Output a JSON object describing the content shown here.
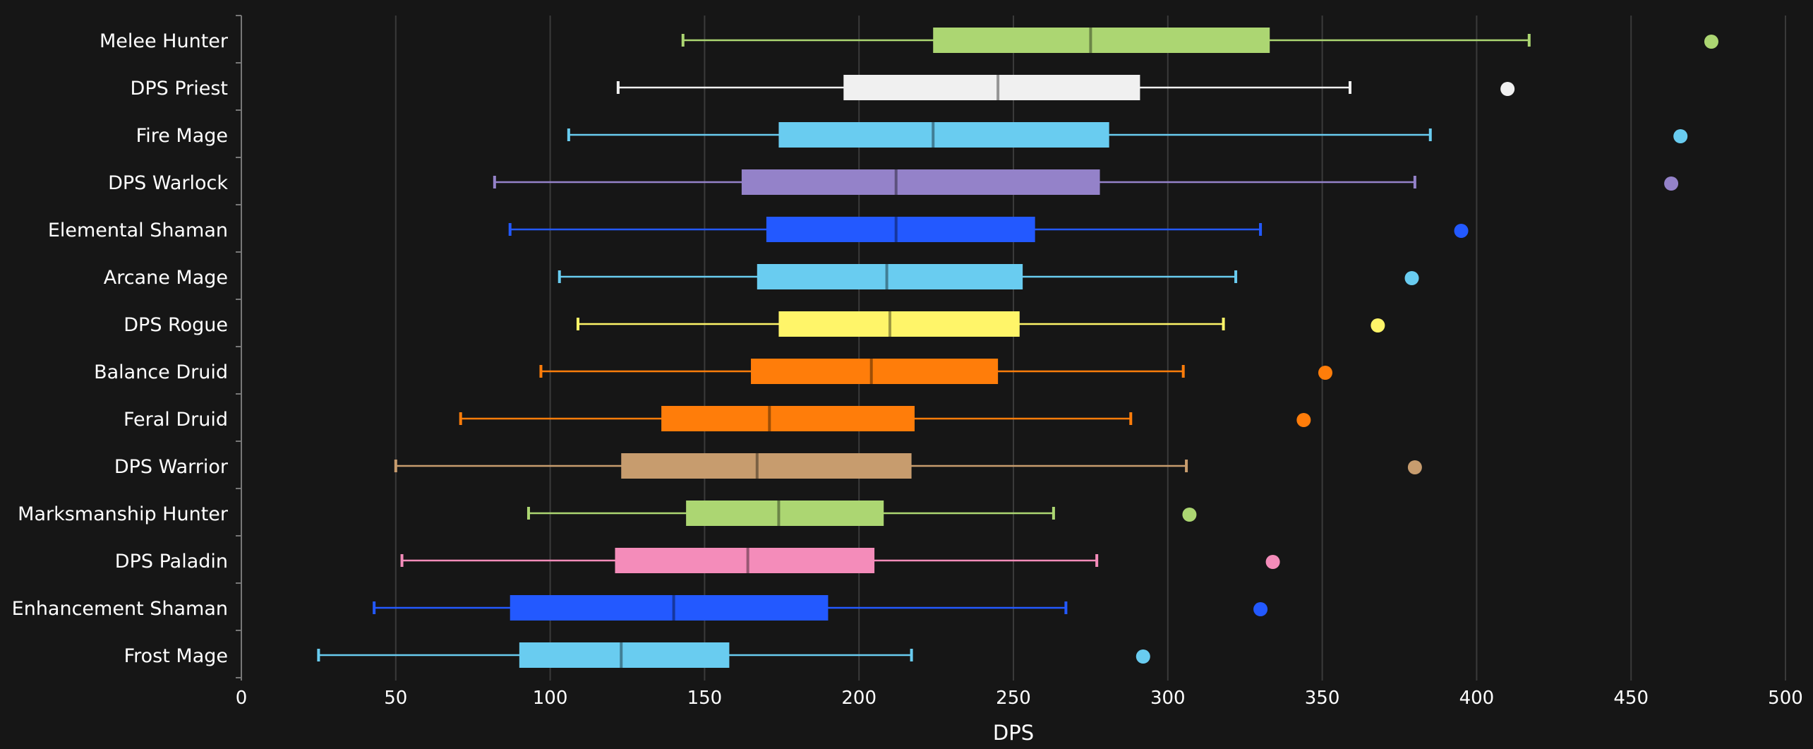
{
  "chart_data": {
    "type": "boxplot",
    "orientation": "horizontal",
    "title": "",
    "xlabel": "DPS",
    "ylabel": "",
    "xlim": [
      0,
      500
    ],
    "xticks": [
      0,
      50,
      100,
      150,
      200,
      250,
      300,
      350,
      400,
      450,
      500
    ],
    "xtick_labels": [
      "0",
      "50",
      "100",
      "150",
      "200",
      "250",
      "300",
      "350",
      "400",
      "450",
      "500"
    ],
    "grid": "vertical",
    "series": [
      {
        "name": "Melee Hunter",
        "color": "#acd672",
        "whisker_low": 143,
        "q1": 224,
        "median": 275,
        "q3": 333,
        "whisker_high": 417,
        "outlier": 476
      },
      {
        "name": "DPS Priest",
        "color": "#f0f0f0",
        "whisker_low": 122,
        "q1": 195,
        "median": 245,
        "q3": 291,
        "whisker_high": 359,
        "outlier": 410
      },
      {
        "name": "Fire Mage",
        "color": "#69ccf0",
        "whisker_low": 106,
        "q1": 174,
        "median": 224,
        "q3": 281,
        "whisker_high": 385,
        "outlier": 466
      },
      {
        "name": "DPS Warlock",
        "color": "#9482c9",
        "whisker_low": 82,
        "q1": 162,
        "median": 212,
        "q3": 278,
        "whisker_high": 380,
        "outlier": 463
      },
      {
        "name": "Elemental Shaman",
        "color": "#2359ff",
        "whisker_low": 87,
        "q1": 170,
        "median": 212,
        "q3": 257,
        "whisker_high": 330,
        "outlier": 395
      },
      {
        "name": "Arcane Mage",
        "color": "#69ccf0",
        "whisker_low": 103,
        "q1": 167,
        "median": 209,
        "q3": 253,
        "whisker_high": 322,
        "outlier": 379
      },
      {
        "name": "DPS Rogue",
        "color": "#fff569",
        "whisker_low": 109,
        "q1": 174,
        "median": 210,
        "q3": 252,
        "whisker_high": 318,
        "outlier": 368
      },
      {
        "name": "Balance Druid",
        "color": "#ff7d0a",
        "whisker_low": 97,
        "q1": 165,
        "median": 204,
        "q3": 245,
        "whisker_high": 305,
        "outlier": 351
      },
      {
        "name": "Feral Druid",
        "color": "#ff7d0a",
        "whisker_low": 71,
        "q1": 136,
        "median": 171,
        "q3": 218,
        "whisker_high": 288,
        "outlier": 344
      },
      {
        "name": "DPS Warrior",
        "color": "#c79c6e",
        "whisker_low": 50,
        "q1": 123,
        "median": 167,
        "q3": 217,
        "whisker_high": 306,
        "outlier": 380
      },
      {
        "name": "Marksmanship Hunter",
        "color": "#acd672",
        "whisker_low": 93,
        "q1": 144,
        "median": 174,
        "q3": 208,
        "whisker_high": 263,
        "outlier": 307
      },
      {
        "name": "DPS Paladin",
        "color": "#f48cba",
        "whisker_low": 52,
        "q1": 121,
        "median": 164,
        "q3": 205,
        "whisker_high": 277,
        "outlier": 334
      },
      {
        "name": "Enhancement Shaman",
        "color": "#2359ff",
        "whisker_low": 43,
        "q1": 87,
        "median": 140,
        "q3": 190,
        "whisker_high": 267,
        "outlier": 330
      },
      {
        "name": "Frost Mage",
        "color": "#69ccf0",
        "whisker_low": 25,
        "q1": 90,
        "median": 123,
        "q3": 158,
        "whisker_high": 217,
        "outlier": 292
      }
    ]
  }
}
